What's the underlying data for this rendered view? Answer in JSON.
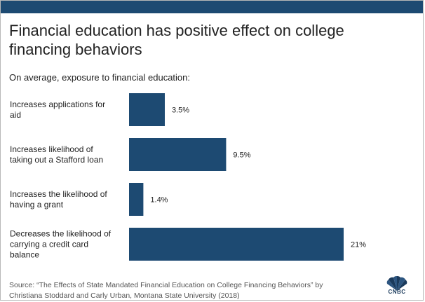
{
  "colors": {
    "bar": "#1d4a72",
    "top_bar": "#1d4a72",
    "text": "#222222"
  },
  "header": {
    "title": "Financial education has positive effect on college financing behaviors",
    "subtitle": "On average, exposure to financial education:"
  },
  "chart_data": {
    "type": "bar",
    "orientation": "horizontal",
    "title": "Financial education has positive effect on college financing behaviors",
    "subtitle": "On average, exposure to financial education:",
    "categories": [
      "Increases applications for aid",
      "Increases likelihood of taking out a Stafford loan",
      "Increases the likelihood of having a grant",
      "Decreases the likelihood of carrying a credit card balance"
    ],
    "category_lines": [
      [
        "Increases applications for",
        "aid"
      ],
      [
        "Increases likelihood of",
        "taking out a Stafford loan"
      ],
      [
        "Increases the likelihood of",
        "having a grant"
      ],
      [
        "Decreases the likelihood of",
        "carrying a credit card",
        "balance"
      ]
    ],
    "values": [
      3.5,
      9.5,
      1.4,
      21
    ],
    "value_labels": [
      "3.5%",
      "9.5%",
      "1.4%",
      "21%"
    ],
    "xlim": [
      0,
      21
    ],
    "unit": "%",
    "grid": false,
    "legend": "none"
  },
  "footer": {
    "source_line1": "Source:  “The Effects of State Mandated Financial Education on College Financing Behaviors” by",
    "source_line2": "Christiana Stoddard and Carly Urban, Montana State University (2018)",
    "logo_text": "CNBC"
  }
}
